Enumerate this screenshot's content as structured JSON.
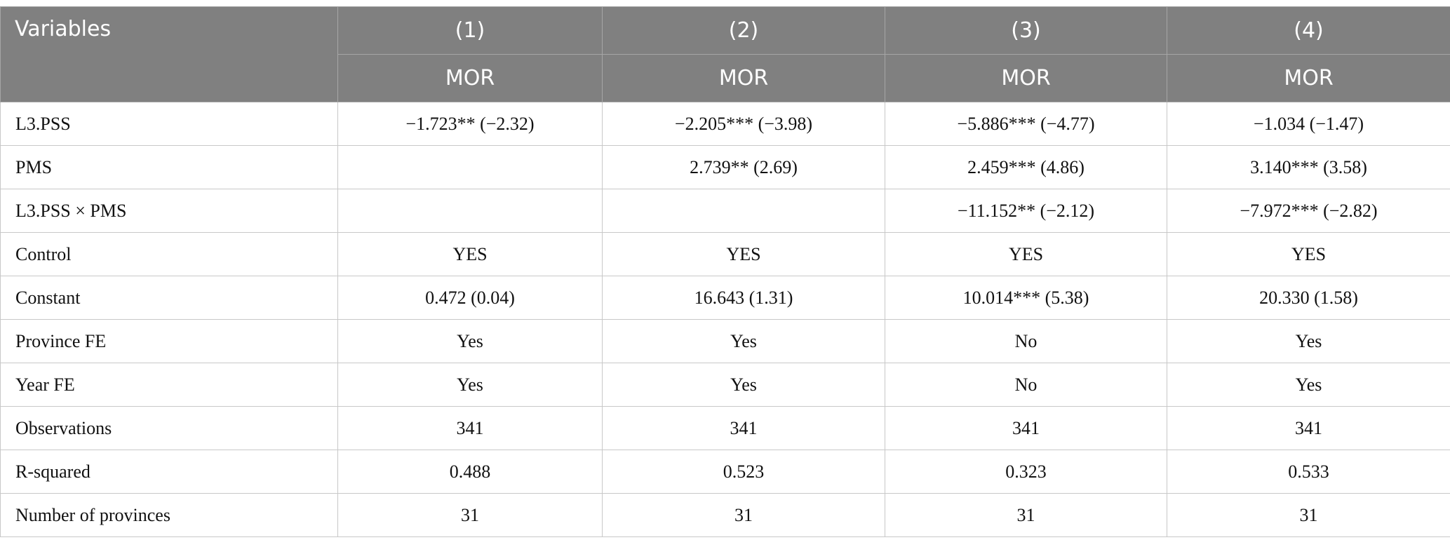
{
  "table": {
    "header": {
      "variables": "Variables",
      "models": [
        "(1)",
        "(2)",
        "(3)",
        "(4)"
      ],
      "dependent": [
        "MOR",
        "MOR",
        "MOR",
        "MOR"
      ]
    },
    "rows": [
      [
        "L3.PSS",
        "−1.723** (−2.32)",
        "−2.205*** (−3.98)",
        "−5.886*** (−4.77)",
        "−1.034 (−1.47)"
      ],
      [
        "PMS",
        null,
        "2.739** (2.69)",
        "2.459*** (4.86)",
        "3.140*** (3.58)"
      ],
      [
        "L3.PSS × PMS",
        null,
        null,
        "−11.152** (−2.12)",
        "−7.972*** (−2.82)"
      ],
      [
        "Control",
        "YES",
        "YES",
        "YES",
        "YES"
      ],
      [
        "Constant",
        "0.472 (0.04)",
        "16.643 (1.31)",
        "10.014*** (5.38)",
        "20.330 (1.58)"
      ],
      [
        "Province FE",
        "Yes",
        "Yes",
        "No",
        "Yes"
      ],
      [
        "Year FE",
        "Yes",
        "Yes",
        "No",
        "Yes"
      ],
      [
        "Observations",
        "341",
        "341",
        "341",
        "341"
      ],
      [
        "R-squared",
        "0.488",
        "0.523",
        "0.323",
        "0.533"
      ],
      [
        "Number of provinces",
        "31",
        "31",
        "31",
        "31"
      ]
    ]
  }
}
